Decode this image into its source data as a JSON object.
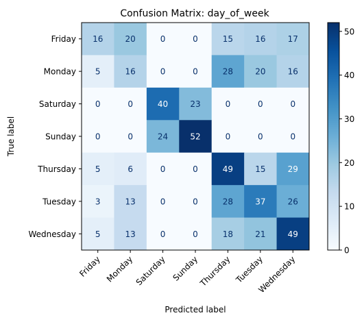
{
  "chart_data": {
    "type": "heatmap",
    "title": "Confusion Matrix: day_of_week",
    "xlabel": "Predicted label",
    "ylabel": "True label",
    "x_categories": [
      "Friday",
      "Monday",
      "Saturday",
      "Sunday",
      "Thursday",
      "Tuesday",
      "Wednesday"
    ],
    "y_categories": [
      "Friday",
      "Monday",
      "Saturday",
      "Sunday",
      "Thursday",
      "Tuesday",
      "Wednesday"
    ],
    "values": [
      [
        16,
        20,
        0,
        0,
        15,
        16,
        17
      ],
      [
        5,
        16,
        0,
        0,
        28,
        20,
        16
      ],
      [
        0,
        0,
        40,
        23,
        0,
        0,
        0
      ],
      [
        0,
        0,
        24,
        52,
        0,
        0,
        0
      ],
      [
        5,
        6,
        0,
        0,
        49,
        15,
        29
      ],
      [
        3,
        13,
        0,
        0,
        28,
        37,
        26
      ],
      [
        5,
        13,
        0,
        0,
        18,
        21,
        49
      ]
    ],
    "colormap": "Blues",
    "color_range": [
      0,
      52
    ],
    "colorbar_ticks": [
      0,
      10,
      20,
      30,
      40,
      50
    ]
  }
}
